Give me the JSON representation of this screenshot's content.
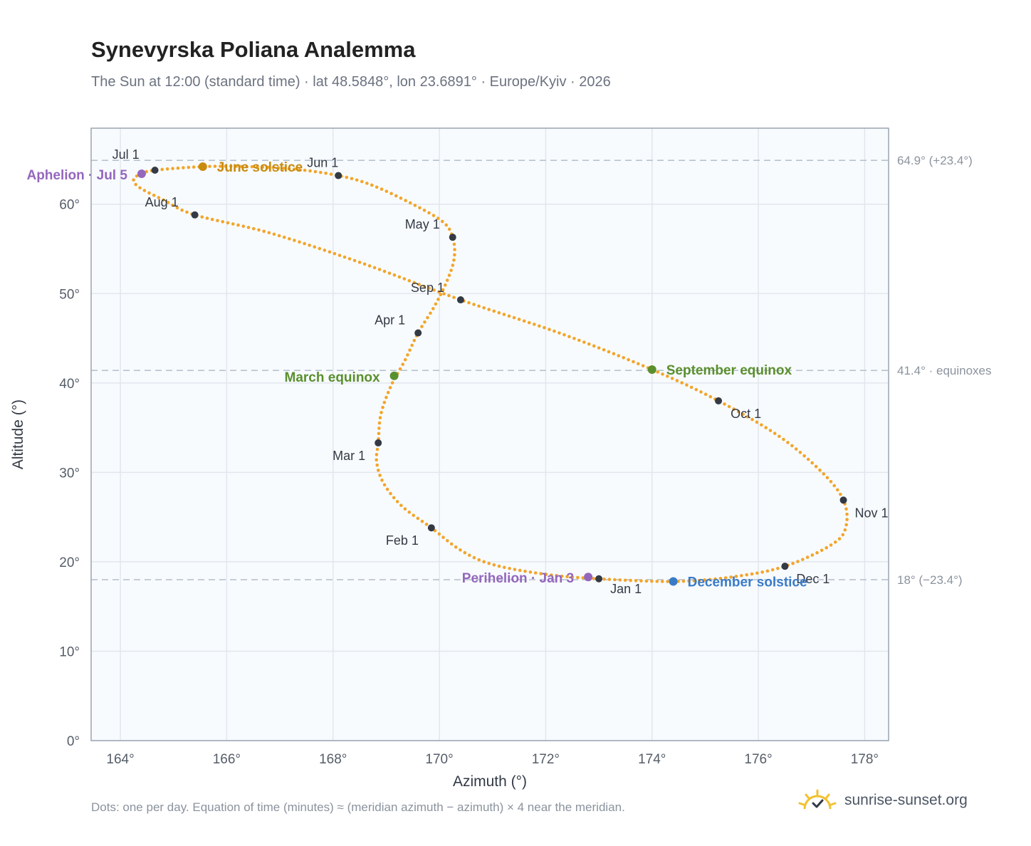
{
  "header": {
    "title": "Synevyrska Poliana Analemma",
    "subtitle": "The Sun at 12:00 (standard time) · lat 48.5848°, lon 23.6891° · Europe/Kyiv · 2026"
  },
  "footer": {
    "note": "Dots: one per day. Equation of time (minutes) ≈ (meridian azimuth − azimuth) × 4 near the meridian.",
    "brand": "sunrise-sunset.org",
    "brand_icon": "sun-check-icon"
  },
  "colors": {
    "analemma": "#f2a52a",
    "month_marker": "#333a45",
    "june_solstice": "#c98b0e",
    "december_solstice": "#3a7bc8",
    "equinox": "#5a8f2e",
    "apsis": "#9467bd",
    "reference_line": "#b8c2cf",
    "plot_bg": "#f8fbfe",
    "grid": "#e2e7ee",
    "frame": "#9aa4b2"
  },
  "chart_data": {
    "type": "scatter",
    "xlabel": "Azimuth (°)",
    "ylabel": "Altitude (°)",
    "xlim": [
      163.45,
      178.45
    ],
    "ylim": [
      0,
      68.5
    ],
    "xticks": [
      164,
      166,
      168,
      170,
      172,
      174,
      176,
      178
    ],
    "xtick_labels": [
      "164°",
      "166°",
      "168°",
      "170°",
      "172°",
      "174°",
      "176°",
      "178°"
    ],
    "yticks": [
      0,
      10,
      20,
      30,
      40,
      50,
      60
    ],
    "ytick_labels": [
      "0°",
      "10°",
      "20°",
      "30°",
      "40°",
      "50°",
      "60°"
    ],
    "grid": true,
    "reference_lines": [
      {
        "y": 64.9,
        "label": "64.9° (+23.4°)"
      },
      {
        "y": 41.4,
        "label": "41.4° · equinoxes"
      },
      {
        "y": 18.0,
        "label": "18° (−23.4°)"
      }
    ],
    "month_markers": [
      {
        "label": "Jan 1",
        "az": 173.0,
        "alt": 18.1
      },
      {
        "label": "Feb 1",
        "az": 169.85,
        "alt": 23.8
      },
      {
        "label": "Mar 1",
        "az": 168.85,
        "alt": 33.3
      },
      {
        "label": "Apr 1",
        "az": 169.6,
        "alt": 45.6
      },
      {
        "label": "May 1",
        "az": 170.25,
        "alt": 56.3
      },
      {
        "label": "Jun 1",
        "az": 168.1,
        "alt": 63.2
      },
      {
        "label": "Jul 1",
        "az": 164.65,
        "alt": 63.8
      },
      {
        "label": "Aug 1",
        "az": 165.4,
        "alt": 58.8
      },
      {
        "label": "Sep 1",
        "az": 170.4,
        "alt": 49.3
      },
      {
        "label": "Oct 1",
        "az": 175.25,
        "alt": 38.0
      },
      {
        "label": "Nov 1",
        "az": 177.6,
        "alt": 26.9
      },
      {
        "label": "Dec 1",
        "az": 176.5,
        "alt": 19.5
      }
    ],
    "events": [
      {
        "label": "June solstice",
        "az": 165.55,
        "alt": 64.2,
        "color": "#c98b0e"
      },
      {
        "label": "December solstice",
        "az": 174.4,
        "alt": 17.8,
        "color": "#3a7bc8"
      },
      {
        "label": "March equinox",
        "az": 169.15,
        "alt": 40.8,
        "color": "#5a8f2e"
      },
      {
        "label": "September equinox",
        "az": 174.0,
        "alt": 41.5,
        "color": "#5a8f2e"
      },
      {
        "label": "Aphelion · Jul 5",
        "az": 164.4,
        "alt": 63.4,
        "color": "#9467bd"
      },
      {
        "label": "Perihelion · Jan 3",
        "az": 172.8,
        "alt": 18.3,
        "color": "#9467bd"
      }
    ],
    "analemma_path": [
      {
        "az": 173.0,
        "alt": 18.1
      },
      {
        "az": 172.0,
        "alt": 18.6
      },
      {
        "az": 171.0,
        "alt": 19.7
      },
      {
        "az": 170.4,
        "alt": 21.3
      },
      {
        "az": 169.85,
        "alt": 23.8
      },
      {
        "az": 169.3,
        "alt": 26.2
      },
      {
        "az": 168.95,
        "alt": 28.8
      },
      {
        "az": 168.82,
        "alt": 31.2
      },
      {
        "az": 168.85,
        "alt": 33.3
      },
      {
        "az": 168.9,
        "alt": 36.5
      },
      {
        "az": 169.1,
        "alt": 39.8
      },
      {
        "az": 169.35,
        "alt": 42.5
      },
      {
        "az": 169.6,
        "alt": 45.6
      },
      {
        "az": 169.9,
        "alt": 48.5
      },
      {
        "az": 170.15,
        "alt": 51.5
      },
      {
        "az": 170.28,
        "alt": 54.0
      },
      {
        "az": 170.25,
        "alt": 56.3
      },
      {
        "az": 170.05,
        "alt": 58.1
      },
      {
        "az": 169.4,
        "alt": 60.3
      },
      {
        "az": 168.7,
        "alt": 62.2
      },
      {
        "az": 168.1,
        "alt": 63.2
      },
      {
        "az": 167.3,
        "alt": 63.9
      },
      {
        "az": 166.4,
        "alt": 64.2
      },
      {
        "az": 165.55,
        "alt": 64.2
      },
      {
        "az": 164.65,
        "alt": 63.8
      },
      {
        "az": 164.4,
        "alt": 63.4
      },
      {
        "az": 164.25,
        "alt": 62.8
      },
      {
        "az": 164.35,
        "alt": 61.9
      },
      {
        "az": 164.8,
        "alt": 60.5
      },
      {
        "az": 165.4,
        "alt": 58.8
      },
      {
        "az": 166.8,
        "alt": 56.8
      },
      {
        "az": 168.5,
        "alt": 53.5
      },
      {
        "az": 170.4,
        "alt": 49.3
      },
      {
        "az": 172.3,
        "alt": 45.5
      },
      {
        "az": 174.0,
        "alt": 41.5
      },
      {
        "az": 175.25,
        "alt": 38.0
      },
      {
        "az": 176.4,
        "alt": 34.0
      },
      {
        "az": 177.2,
        "alt": 30.0
      },
      {
        "az": 177.6,
        "alt": 26.9
      },
      {
        "az": 177.65,
        "alt": 24.0
      },
      {
        "az": 177.4,
        "alt": 22.0
      },
      {
        "az": 176.5,
        "alt": 19.5
      },
      {
        "az": 175.5,
        "alt": 18.3
      },
      {
        "az": 174.4,
        "alt": 17.8
      },
      {
        "az": 173.0,
        "alt": 18.1
      }
    ]
  }
}
